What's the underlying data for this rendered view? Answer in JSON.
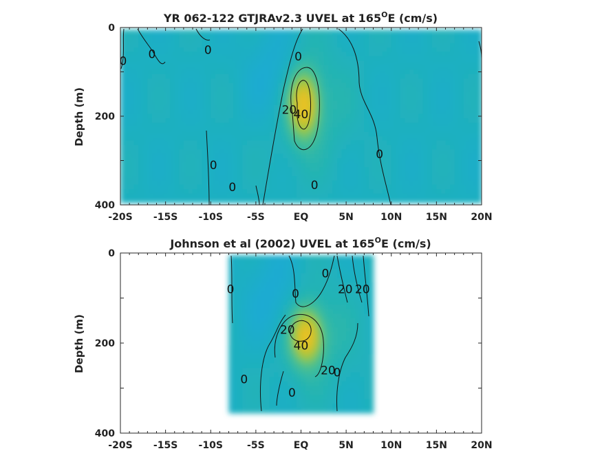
{
  "chart_data": [
    {
      "type": "heatmap",
      "title": "YR 062-122 GTJRAv2.3 UVEL at 165°E (cm/s)",
      "title_parts": {
        "prefix": "YR 062-122 GTJRAv2.3 UVEL at 165",
        "degree": "O",
        "suffix": "E (cm/s)"
      },
      "xlabel": "",
      "ylabel": "Depth (m)",
      "x_ticks": [
        "-20S",
        "-15S",
        "-10S",
        "-5S",
        "EQ",
        "5N",
        "10N",
        "15N",
        "20N"
      ],
      "x_tick_values": [
        -20,
        -15,
        -10,
        -5,
        0,
        5,
        10,
        15,
        20
      ],
      "y_ticks": [
        "0",
        "200",
        "400"
      ],
      "y_tick_values": [
        0,
        200,
        400
      ],
      "xlim": [
        -20,
        20
      ],
      "ylim": [
        400,
        0
      ],
      "y_reversed": true,
      "data_extent": {
        "lat": [
          -20,
          20
        ],
        "depth": [
          5,
          395
        ]
      },
      "colormap": [
        "#3a7fe0",
        "#1aa8dc",
        "#21b3b6",
        "#4cc08e",
        "#92c74f",
        "#c9c32b",
        "#e6c228"
      ],
      "value_range": [
        -20,
        50
      ],
      "jet_core": {
        "lat": 0.3,
        "depth": 175,
        "speed": 48,
        "lat_halfwidth": 1.5,
        "depth_halfwidth": 65
      },
      "contour_levels": [
        0,
        20,
        40
      ],
      "contour_labels": [
        {
          "text": "0",
          "lat": -19.7,
          "depth": 75
        },
        {
          "text": "0",
          "lat": -16.5,
          "depth": 60
        },
        {
          "text": "0",
          "lat": -10.3,
          "depth": 50
        },
        {
          "text": "0",
          "lat": -0.3,
          "depth": 65
        },
        {
          "text": "20",
          "lat": -1.3,
          "depth": 185
        },
        {
          "text": "40",
          "lat": 0.0,
          "depth": 195
        },
        {
          "text": "0",
          "lat": 8.7,
          "depth": 285
        },
        {
          "text": "0",
          "lat": -9.7,
          "depth": 310
        },
        {
          "text": "0",
          "lat": -7.6,
          "depth": 360
        },
        {
          "text": "0",
          "lat": 1.5,
          "depth": 355
        }
      ]
    },
    {
      "type": "heatmap",
      "title": "Johnson et al (2002) UVEL at 165°E (cm/s)",
      "title_parts": {
        "prefix": "Johnson et al (2002) UVEL at 165",
        "degree": "O",
        "suffix": "E (cm/s)"
      },
      "xlabel": "",
      "ylabel": "Depth (m)",
      "x_ticks": [
        "-20S",
        "-15S",
        "-10S",
        "-5S",
        "EQ",
        "5N",
        "10N",
        "15N",
        "20N"
      ],
      "x_tick_values": [
        -20,
        -15,
        -10,
        -5,
        0,
        5,
        10,
        15,
        20
      ],
      "y_ticks": [
        "0",
        "200",
        "400"
      ],
      "y_tick_values": [
        0,
        200,
        400
      ],
      "xlim": [
        -20,
        20
      ],
      "ylim": [
        400,
        0
      ],
      "y_reversed": true,
      "data_extent": {
        "lat": [
          -8,
          8
        ],
        "depth": [
          5,
          350
        ]
      },
      "colormap": [
        "#3a7fe0",
        "#1aa8dc",
        "#21b3b6",
        "#4cc08e",
        "#92c74f",
        "#c9c32b",
        "#e6c228"
      ],
      "value_range": [
        -20,
        50
      ],
      "jet_core": {
        "lat": 0.6,
        "depth": 185,
        "speed": 46,
        "lat_halfwidth": 1.6,
        "depth_halfwidth": 55
      },
      "contour_levels": [
        0,
        20,
        40
      ],
      "contour_labels": [
        {
          "text": "0",
          "lat": -7.8,
          "depth": 80
        },
        {
          "text": "0",
          "lat": -0.6,
          "depth": 90
        },
        {
          "text": "0",
          "lat": 2.7,
          "depth": 45
        },
        {
          "text": "20",
          "lat": 4.9,
          "depth": 80
        },
        {
          "text": "20",
          "lat": 6.8,
          "depth": 80
        },
        {
          "text": "20",
          "lat": -1.5,
          "depth": 170
        },
        {
          "text": "40",
          "lat": 0.0,
          "depth": 205
        },
        {
          "text": "20",
          "lat": 3.0,
          "depth": 260
        },
        {
          "text": "0",
          "lat": 4.0,
          "depth": 265
        },
        {
          "text": "0",
          "lat": -6.3,
          "depth": 280
        },
        {
          "text": "0",
          "lat": -1.0,
          "depth": 310
        }
      ]
    }
  ]
}
